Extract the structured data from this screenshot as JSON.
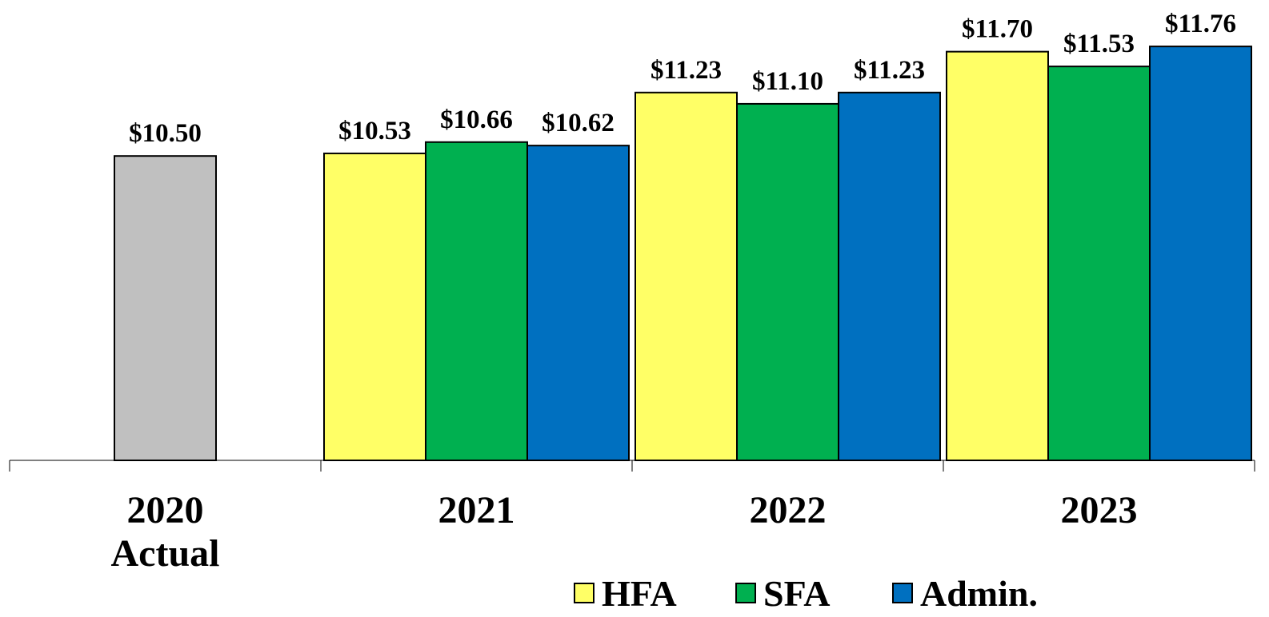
{
  "chart_data": {
    "type": "bar",
    "categories": [
      "2020 Actual",
      "2021",
      "2022",
      "2023"
    ],
    "ylim": [
      7,
      12
    ],
    "actual": {
      "color": "#c0c0c0",
      "values": [
        10.5,
        null,
        null,
        null
      ],
      "value_labels": [
        "$10.50",
        null,
        null,
        null
      ]
    },
    "series": [
      {
        "name": "HFA",
        "color": "#ffff66",
        "values": [
          null,
          10.53,
          11.23,
          11.7
        ],
        "value_labels": [
          null,
          "$10.53",
          "$11.23",
          "$11.70"
        ]
      },
      {
        "name": "SFA",
        "color": "#00b050",
        "values": [
          null,
          10.66,
          11.1,
          11.53
        ],
        "value_labels": [
          null,
          "$10.66",
          "$11.10",
          "$11.53"
        ]
      },
      {
        "name": "Admin.",
        "color": "#0070c0",
        "values": [
          null,
          10.62,
          11.23,
          11.76
        ],
        "value_labels": [
          null,
          "$10.62",
          "$11.23",
          "$11.76"
        ]
      }
    ]
  }
}
